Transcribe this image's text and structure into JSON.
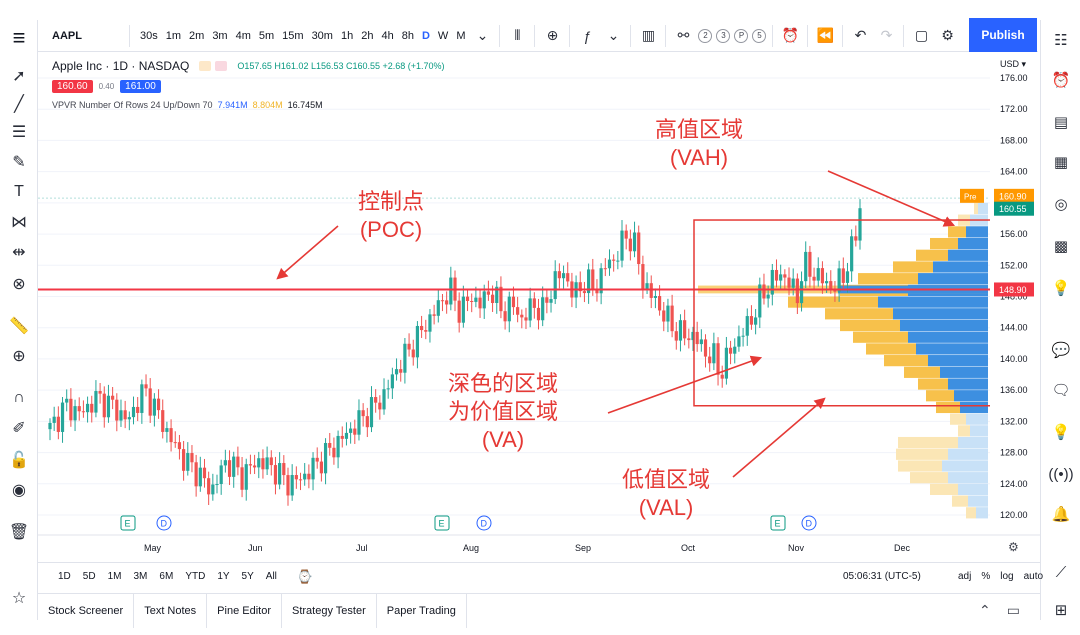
{
  "top": {
    "symbol": "AAPL",
    "timeframes": [
      "30s",
      "1m",
      "2m",
      "3m",
      "4m",
      "5m",
      "15m",
      "30m",
      "1h",
      "2h",
      "4h",
      "8h",
      "D",
      "W",
      "M"
    ],
    "active_timeframe": "D",
    "replay_circles": [
      "2",
      "3",
      "P",
      "5"
    ],
    "publish_label": "Publish"
  },
  "legend": {
    "title": "Apple Inc · 1D · NASDAQ",
    "ohlc": "O157.65 H161.02 L156.53 C160.55 +2.68 (+1.70%)",
    "bid": "160.60",
    "spread": "0.40",
    "ask": "161.00",
    "vpvr_label": "VPVR Number Of Rows 24 Up/Down 70",
    "vpvr_up": "7.941M",
    "vpvr_down": "8.804M",
    "vpvr_total": "16.745M"
  },
  "axis": {
    "currency": "USD",
    "price_ticks": [
      "176.00",
      "172.00",
      "168.00",
      "164.00",
      "160.00",
      "156.00",
      "152.00",
      "148.00",
      "144.00",
      "140.00",
      "136.00",
      "132.00",
      "128.00",
      "124.00",
      "120.00"
    ],
    "months": [
      "May",
      "Jun",
      "Jul",
      "Aug",
      "Sep",
      "Oct",
      "Nov",
      "Dec"
    ],
    "pre_label": "Pre",
    "pre_price": "160.90",
    "last_price": "160.55",
    "poc_price": "148.90"
  },
  "events": [
    "E",
    "D",
    "E",
    "D",
    "E",
    "D"
  ],
  "annotations": {
    "vah": "高值区域\n(VAH)",
    "poc": "控制点\n(POC)",
    "va": "深色的区域\n为价值区域\n(VA)",
    "val": "低值区域\n(VAL)"
  },
  "range_bar": {
    "ranges": [
      "1D",
      "5D",
      "1M",
      "3M",
      "6M",
      "YTD",
      "1Y",
      "5Y",
      "All"
    ],
    "time": "05:06:31 (UTC-5)",
    "options": [
      "adj",
      "%",
      "log",
      "auto"
    ]
  },
  "bottom_tabs": [
    "Stock Screener",
    "Text Notes",
    "Pine Editor",
    "Strategy Tester",
    "Paper Trading"
  ],
  "colors": {
    "up": "#26a69a",
    "down": "#ef5350",
    "poc": "#f23645",
    "annotation": "#e53935",
    "vp_up_dark": "#3d8fe0",
    "vp_down_dark": "#f7c14b",
    "vp_up_light": "#c8e1f7",
    "vp_down_light": "#fbe6b5"
  }
}
